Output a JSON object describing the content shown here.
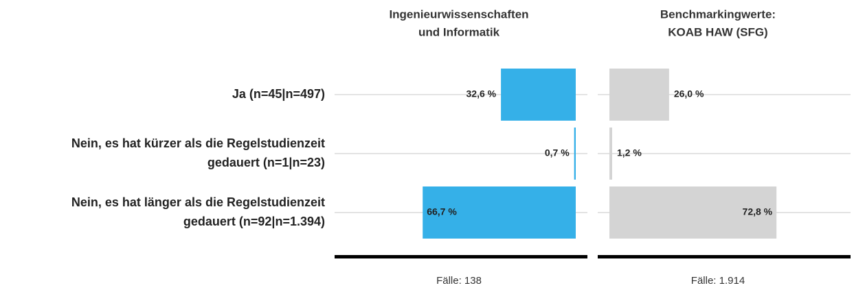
{
  "chart_data": {
    "type": "bar",
    "orientation": "horizontal",
    "categories": [
      [
        "Ja (n=45|n=497)"
      ],
      [
        "Nein, es hat kürzer als die Regelstudienzeit",
        "gedauert (n=1|n=23)"
      ],
      [
        "Nein, es hat länger als die Regelstudienzeit",
        "gedauert (n=92|n=1.394)"
      ]
    ],
    "xlim": [
      0,
      100
    ],
    "series": [
      {
        "name": [
          "Ingenieurwissenschaften",
          "und Informatik"
        ],
        "color": "#35b0e8",
        "direction": "left",
        "values": [
          32.6,
          0.7,
          66.7
        ],
        "value_labels": [
          "32,6 %",
          "0,7 %",
          "66,7 %"
        ],
        "footer": "Fälle: 138"
      },
      {
        "name": [
          "Benchmarkingwerte:",
          "KOAB HAW (SFG)"
        ],
        "color": "#d4d4d4",
        "direction": "right",
        "values": [
          26.0,
          1.2,
          72.8
        ],
        "value_labels": [
          "26,0 %",
          "1,2 %",
          "72,8 %"
        ],
        "footer": "Fälle: 1.914"
      }
    ]
  }
}
